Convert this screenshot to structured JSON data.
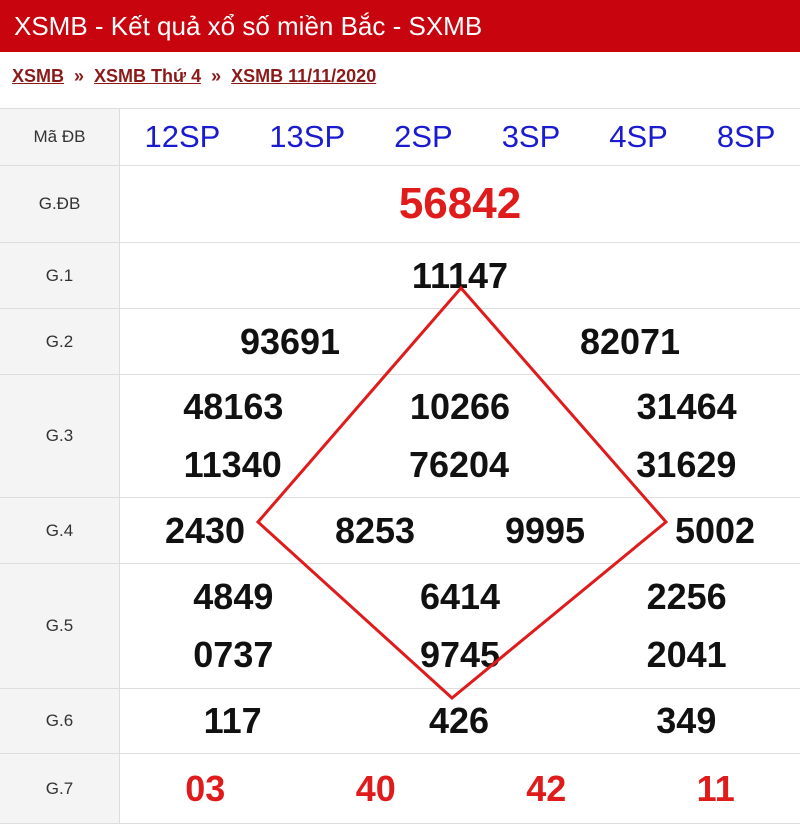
{
  "header": {
    "title": "XSMB - Kết quả xổ số miền Bắc - SXMB"
  },
  "breadcrumb": [
    "XSMB",
    "XSMB Thứ 4",
    "XSMB 11/11/2020"
  ],
  "breadcrumb_sep": "»",
  "codes": {
    "label": "Mã ĐB",
    "values": [
      "12SP",
      "13SP",
      "2SP",
      "3SP",
      "4SP",
      "8SP"
    ]
  },
  "prizes": {
    "gdb": {
      "label": "G.ĐB",
      "values": [
        "56842"
      ]
    },
    "g1": {
      "label": "G.1",
      "values": [
        "11147"
      ]
    },
    "g2": {
      "label": "G.2",
      "values": [
        "93691",
        "82071"
      ]
    },
    "g3": {
      "label": "G.3",
      "values": [
        "48163",
        "10266",
        "31464",
        "11340",
        "76204",
        "31629"
      ]
    },
    "g4": {
      "label": "G.4",
      "values": [
        "2430",
        "8253",
        "9995",
        "5002"
      ]
    },
    "g5": {
      "label": "G.5",
      "values": [
        "4849",
        "6414",
        "2256",
        "0737",
        "9745",
        "2041"
      ]
    },
    "g6": {
      "label": "G.6",
      "values": [
        "117",
        "426",
        "349"
      ]
    },
    "g7": {
      "label": "G.7",
      "values": [
        "03",
        "40",
        "42",
        "11"
      ]
    }
  },
  "colors": {
    "header": "#c8050e",
    "special": "#e01b1b",
    "code": "#1a1ad0",
    "diamond": "#e01b1b"
  }
}
